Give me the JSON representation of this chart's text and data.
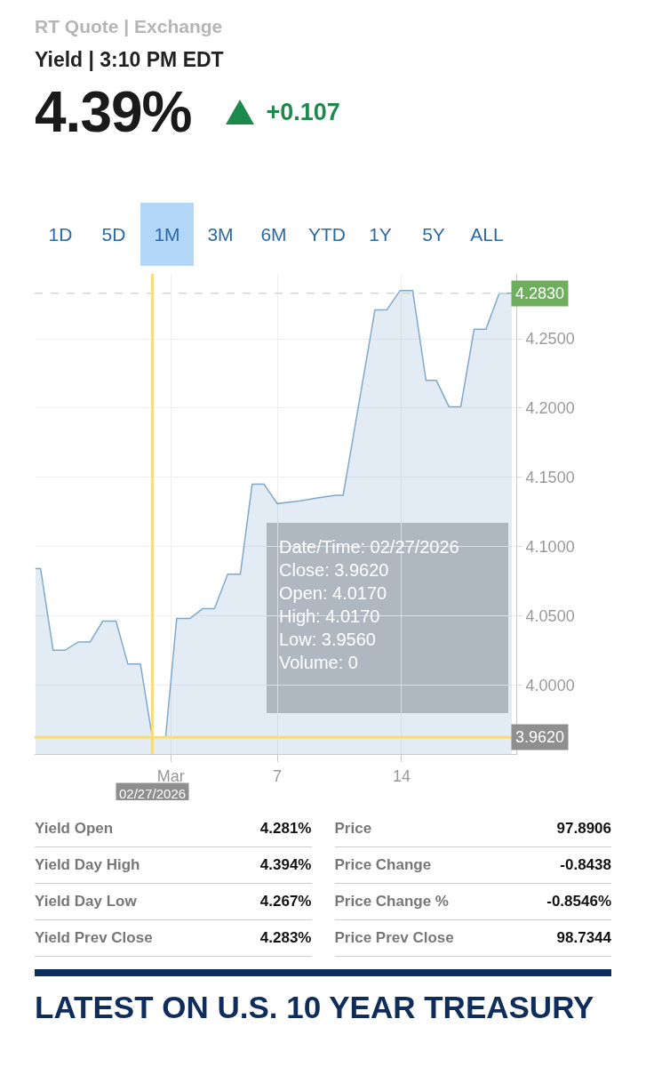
{
  "chart_data": [
    {
      "type": "other",
      "subtitle": "RT Quote | Exchange",
      "title": "Yield | 3:10 PM EDT",
      "annotations": [
        "4.39%",
        "+0.107",
        "1D",
        "5D",
        "1M",
        "3M",
        "6M",
        "YTD",
        "1Y",
        "5Y",
        "ALL"
      ]
    },
    {
      "type": "area",
      "x": [
        "2026-02-21T09:00",
        "2026-02-21T16:00",
        "2026-02-22T09:00",
        "2026-02-23T01:00",
        "2026-02-23T19:00",
        "2026-02-24T11:00",
        "2026-02-25T04:00",
        "2026-02-25T22:00",
        "2026-02-26T14:00",
        "2026-02-27T07:00",
        "2026-02-27T23:00",
        "2026-02-28T17:00",
        "2026-03-01T08:00",
        "2026-03-02T02:00",
        "2026-03-02T19:00",
        "2026-03-03T11:00",
        "2026-03-04T05:00",
        "2026-03-04T22:00",
        "2026-03-05T14:00",
        "2026-03-06T06:00",
        "2026-03-07T00:00",
        "2026-03-08T07:00",
        "2026-03-09T06:00",
        "2026-03-10T07:00",
        "2026-03-10T17:00",
        "2026-03-12T12:00",
        "2026-03-13T04:00",
        "2026-03-13T22:00",
        "2026-03-14T15:00",
        "2026-03-15T09:00",
        "2026-03-15T23:00",
        "2026-03-16T16:00",
        "2026-03-17T08:00",
        "2026-03-18T02:00",
        "2026-03-18T18:00",
        "2026-03-19T12:00",
        "2026-03-20T05:00"
      ],
      "series": [
        {
          "color": "#7fa9cc",
          "values": [
            4.084,
            4.084,
            4.025,
            4.025,
            4.031,
            4.031,
            4.046,
            4.046,
            4.015,
            4.015,
            3.962,
            3.962,
            4.048,
            4.048,
            4.055,
            4.055,
            4.08,
            4.08,
            4.145,
            4.145,
            4.131,
            4.133,
            4.135,
            4.137,
            4.137,
            4.271,
            4.271,
            4.285,
            4.285,
            4.22,
            4.22,
            4.201,
            4.201,
            4.257,
            4.257,
            4.283,
            4.283
          ]
        }
      ],
      "xlim": [
        "2026-02-21T08:00",
        "2026-03-20T11:00"
      ],
      "xticks": [
        {
          "value": "2026-03-01",
          "label": "Mar"
        },
        {
          "value": "2026-03-07",
          "label": "7"
        },
        {
          "value": "2026-03-14",
          "label": "14"
        }
      ],
      "ylim": [
        3.95,
        4.297
      ],
      "yticks": [
        {
          "value": 4.0,
          "label": "4.0000"
        },
        {
          "value": 4.05,
          "label": "4.0500"
        },
        {
          "value": 4.1,
          "label": "4.1000"
        },
        {
          "value": 4.15,
          "label": "4.1500"
        },
        {
          "value": 4.2,
          "label": "4.2000"
        },
        {
          "value": 4.25,
          "label": "4.2500"
        }
      ],
      "ref_lines": [
        {
          "axis": "y",
          "value": 4.283,
          "label": "4.2830",
          "color": "#c8e2c0",
          "line_style": "dashed"
        },
        {
          "axis": "y",
          "value": 3.962,
          "label": "3.9620",
          "color": "#f8dc7c",
          "line_style": "solid"
        },
        {
          "axis": "x",
          "value": "2026-02-27T23:00",
          "label": "02/27/2026",
          "color": "#f8dc7c",
          "line_style": "solid"
        }
      ],
      "annotations": [
        "Date/Time: 02/27/2026",
        "Close: 3.9620",
        "Open: 4.0170",
        "High: 4.0170",
        "Low: 3.9560",
        "Volume: 0"
      ],
      "grid": true,
      "marker": "none",
      "line_style": "solid"
    },
    {
      "type": "other",
      "annotations": [
        "Yield Open",
        "4.281%",
        "Price",
        "97.8906",
        "Yield Day High",
        "4.394%",
        "Price Change",
        "-0.8438",
        "Yield Day Low",
        "4.267%",
        "Price Change %",
        "-0.8546%",
        "Yield Prev Close",
        "4.283%",
        "Price Prev Close",
        "98.7344"
      ]
    },
    {
      "type": "other",
      "title": "LATEST ON U.S. 10 YEAR TREASURY"
    }
  ]
}
